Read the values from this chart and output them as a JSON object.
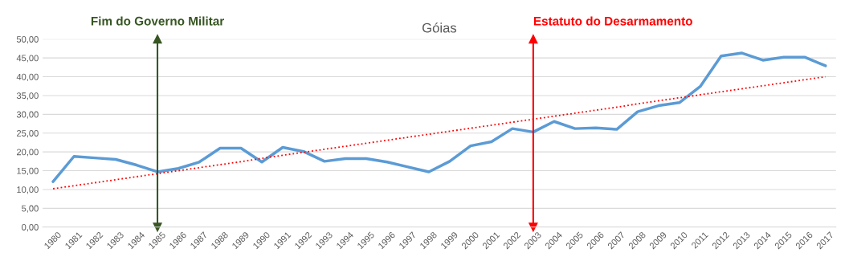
{
  "chart_data": {
    "type": "line",
    "title": "Góias",
    "categories": [
      "1980",
      "1981",
      "1982",
      "1983",
      "1984",
      "1985",
      "1986",
      "1987",
      "1988",
      "1989",
      "1990",
      "1991",
      "1992",
      "1993",
      "1994",
      "1995",
      "1996",
      "1997",
      "1998",
      "1999",
      "2000",
      "2001",
      "2002",
      "2003",
      "2004",
      "2005",
      "2006",
      "2007",
      "2008",
      "2009",
      "2010",
      "2011",
      "2012",
      "2013",
      "2014",
      "2015",
      "2016",
      "2017"
    ],
    "series": [
      {
        "color": "#5b9bd5",
        "values": [
          12.1,
          18.8,
          18.4,
          18.0,
          16.5,
          14.7,
          15.6,
          17.3,
          21.0,
          21.0,
          17.3,
          21.2,
          20.1,
          17.5,
          18.2,
          18.2,
          17.3,
          16.0,
          14.7,
          17.5,
          21.6,
          22.7,
          26.2,
          25.3,
          28.1,
          26.2,
          26.4,
          26.0,
          30.7,
          32.3,
          33.1,
          37.4,
          45.5,
          46.3,
          44.4,
          45.2,
          45.2,
          42.9
        ]
      },
      {
        "color": "#ff0000",
        "line_style": "dotted",
        "values": [
          10.2,
          11.0,
          11.8,
          12.6,
          13.4,
          14.2,
          15.0,
          15.8,
          16.6,
          17.4,
          18.3,
          19.1,
          19.9,
          20.7,
          21.5,
          22.3,
          23.1,
          23.9,
          24.7,
          25.5,
          26.3,
          27.1,
          27.9,
          28.7,
          29.5,
          30.3,
          31.1,
          31.9,
          32.8,
          33.6,
          34.4,
          35.2,
          36.0,
          36.8,
          37.6,
          38.4,
          39.2,
          40.0
        ]
      }
    ],
    "ylim": [
      0,
      50
    ],
    "yticks": [
      {
        "value": 0,
        "label": "0,00"
      },
      {
        "value": 5,
        "label": "5,00"
      },
      {
        "value": 10,
        "label": "10,00"
      },
      {
        "value": 15,
        "label": "15,00"
      },
      {
        "value": 20,
        "label": "20,00"
      },
      {
        "value": 25,
        "label": "25,00"
      },
      {
        "value": 30,
        "label": "30,00"
      },
      {
        "value": 35,
        "label": "35,00"
      },
      {
        "value": 40,
        "label": "40,00"
      },
      {
        "value": 45,
        "label": "45,00"
      },
      {
        "value": 50,
        "label": "50,00"
      }
    ],
    "grid": "y",
    "legend": false,
    "ref_lines": [
      {
        "axis": "x",
        "value": "1985",
        "label": "Fim do Governo Militar",
        "color": "#375623"
      },
      {
        "axis": "x",
        "value": "2003",
        "label": "Estatuto do Desarmamento",
        "color": "#ff0000"
      }
    ]
  }
}
